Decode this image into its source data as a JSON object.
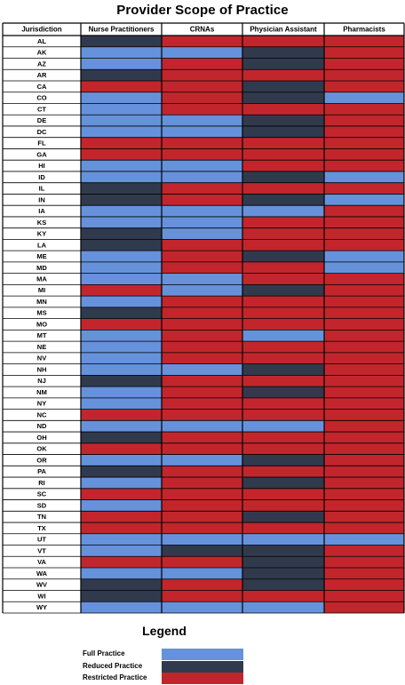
{
  "title": "Provider Scope of Practice",
  "colors": {
    "full": "#6592db",
    "reduced": "#313a4d",
    "restricted": "#c2262c",
    "grid": "#000000"
  },
  "legend": {
    "title": "Legend",
    "items": [
      {
        "key": "full",
        "label": "Full Practice"
      },
      {
        "key": "reduced",
        "label": "Reduced Practice"
      },
      {
        "key": "restricted",
        "label": "Restricted Practice"
      }
    ]
  },
  "chart_data": {
    "type": "heatmap",
    "title": "Provider Scope of Practice",
    "row_header": "Jurisdiction",
    "columns": [
      "Nurse Practitioners",
      "CRNAs",
      "Physician Assistant",
      "Pharmacists"
    ],
    "value_key": {
      "F": "Full Practice",
      "D": "Reduced Practice",
      "R": "Restricted Practice"
    },
    "rows": [
      {
        "label": "AL",
        "values": [
          "D",
          "R",
          "R",
          "R"
        ]
      },
      {
        "label": "AK",
        "values": [
          "F",
          "F",
          "D",
          "R"
        ]
      },
      {
        "label": "AZ",
        "values": [
          "F",
          "R",
          "D",
          "R"
        ]
      },
      {
        "label": "AR",
        "values": [
          "D",
          "R",
          "R",
          "R"
        ]
      },
      {
        "label": "CA",
        "values": [
          "R",
          "R",
          "D",
          "R"
        ]
      },
      {
        "label": "CO",
        "values": [
          "F",
          "R",
          "D",
          "F"
        ]
      },
      {
        "label": "CT",
        "values": [
          "F",
          "R",
          "R",
          "R"
        ]
      },
      {
        "label": "DE",
        "values": [
          "F",
          "F",
          "D",
          "R"
        ]
      },
      {
        "label": "DC",
        "values": [
          "F",
          "F",
          "D",
          "R"
        ]
      },
      {
        "label": "FL",
        "values": [
          "R",
          "R",
          "R",
          "R"
        ]
      },
      {
        "label": "GA",
        "values": [
          "R",
          "R",
          "R",
          "R"
        ]
      },
      {
        "label": "HI",
        "values": [
          "F",
          "F",
          "R",
          "R"
        ]
      },
      {
        "label": "ID",
        "values": [
          "F",
          "F",
          "D",
          "F"
        ]
      },
      {
        "label": "IL",
        "values": [
          "D",
          "R",
          "R",
          "R"
        ]
      },
      {
        "label": "IN",
        "values": [
          "D",
          "R",
          "D",
          "F"
        ]
      },
      {
        "label": "IA",
        "values": [
          "F",
          "F",
          "F",
          "R"
        ]
      },
      {
        "label": "KS",
        "values": [
          "F",
          "F",
          "R",
          "R"
        ]
      },
      {
        "label": "KY",
        "values": [
          "D",
          "F",
          "R",
          "R"
        ]
      },
      {
        "label": "LA",
        "values": [
          "D",
          "R",
          "R",
          "R"
        ]
      },
      {
        "label": "ME",
        "values": [
          "F",
          "R",
          "D",
          "F"
        ]
      },
      {
        "label": "MD",
        "values": [
          "F",
          "R",
          "R",
          "F"
        ]
      },
      {
        "label": "MA",
        "values": [
          "F",
          "F",
          "R",
          "R"
        ]
      },
      {
        "label": "MI",
        "values": [
          "R",
          "F",
          "D",
          "R"
        ]
      },
      {
        "label": "MN",
        "values": [
          "F",
          "R",
          "R",
          "R"
        ]
      },
      {
        "label": "MS",
        "values": [
          "D",
          "R",
          "R",
          "R"
        ]
      },
      {
        "label": "MO",
        "values": [
          "R",
          "R",
          "R",
          "R"
        ]
      },
      {
        "label": "MT",
        "values": [
          "F",
          "R",
          "F",
          "R"
        ]
      },
      {
        "label": "NE",
        "values": [
          "F",
          "R",
          "R",
          "R"
        ]
      },
      {
        "label": "NV",
        "values": [
          "F",
          "R",
          "R",
          "R"
        ]
      },
      {
        "label": "NH",
        "values": [
          "F",
          "F",
          "D",
          "R"
        ]
      },
      {
        "label": "NJ",
        "values": [
          "D",
          "R",
          "R",
          "R"
        ]
      },
      {
        "label": "NM",
        "values": [
          "F",
          "R",
          "D",
          "R"
        ]
      },
      {
        "label": "NY",
        "values": [
          "F",
          "R",
          "R",
          "R"
        ]
      },
      {
        "label": "NC",
        "values": [
          "R",
          "R",
          "R",
          "R"
        ]
      },
      {
        "label": "ND",
        "values": [
          "F",
          "F",
          "F",
          "R"
        ]
      },
      {
        "label": "OH",
        "values": [
          "D",
          "R",
          "R",
          "R"
        ]
      },
      {
        "label": "OK",
        "values": [
          "R",
          "R",
          "R",
          "R"
        ]
      },
      {
        "label": "OR",
        "values": [
          "F",
          "F",
          "D",
          "R"
        ]
      },
      {
        "label": "PA",
        "values": [
          "D",
          "R",
          "R",
          "R"
        ]
      },
      {
        "label": "RI",
        "values": [
          "F",
          "R",
          "D",
          "R"
        ]
      },
      {
        "label": "SC",
        "values": [
          "R",
          "R",
          "R",
          "R"
        ]
      },
      {
        "label": "SD",
        "values": [
          "F",
          "R",
          "R",
          "R"
        ]
      },
      {
        "label": "TN",
        "values": [
          "R",
          "R",
          "D",
          "R"
        ]
      },
      {
        "label": "TX",
        "values": [
          "R",
          "R",
          "R",
          "R"
        ]
      },
      {
        "label": "UT",
        "values": [
          "F",
          "F",
          "F",
          "F"
        ]
      },
      {
        "label": "VT",
        "values": [
          "F",
          "D",
          "D",
          "R"
        ]
      },
      {
        "label": "VA",
        "values": [
          "R",
          "R",
          "D",
          "R"
        ]
      },
      {
        "label": "WA",
        "values": [
          "F",
          "F",
          "D",
          "R"
        ]
      },
      {
        "label": "WV",
        "values": [
          "D",
          "R",
          "D",
          "R"
        ]
      },
      {
        "label": "WI",
        "values": [
          "D",
          "R",
          "R",
          "R"
        ]
      },
      {
        "label": "WY",
        "values": [
          "F",
          "F",
          "F",
          "R"
        ]
      }
    ]
  }
}
